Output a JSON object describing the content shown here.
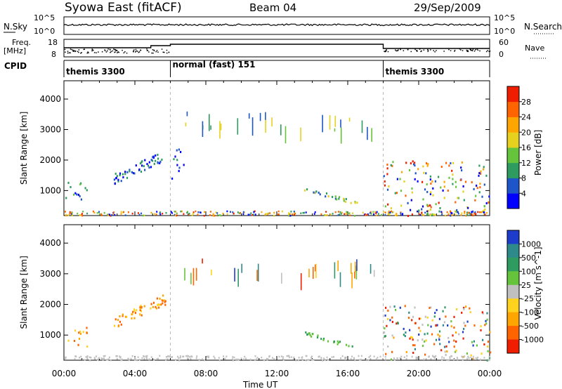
{
  "header": {
    "station": "Syowa East (fitACF)",
    "beam": "Beam 04",
    "date": "29/Sep/2009"
  },
  "noise_panel": {
    "left_label": "N.Sky",
    "left_ticks": [
      "10^5",
      "10^0"
    ],
    "right_label": "N.Search",
    "right_ticks": [
      "10^5",
      "10^0"
    ]
  },
  "freq_panel": {
    "left_label_1": "Freq.",
    "left_label_2": "[MHz]",
    "left_ticks": [
      "18",
      "8"
    ],
    "right_label": "Nave",
    "right_ticks": [
      "60",
      "0"
    ]
  },
  "cpid": {
    "label": "CPID",
    "segments": [
      {
        "name": "themis 3300",
        "start": 0,
        "end": 6
      },
      {
        "name": "normal (fast) 151",
        "start": 6,
        "end": 18
      },
      {
        "name": "themis 3300",
        "start": 18,
        "end": 24
      }
    ]
  },
  "chart_data": [
    {
      "type": "heatmap",
      "title": "Power",
      "xlabel": "Time UT",
      "ylabel": "Slant Range [km]",
      "xlim": [
        0,
        24
      ],
      "ylim": [
        180,
        4600
      ],
      "x_ticks": [
        "00:00",
        "04:00",
        "08:00",
        "12:00",
        "16:00",
        "20:00",
        "00:00"
      ],
      "y_ticks": [
        "1000",
        "2000",
        "3000",
        "4000"
      ],
      "colorbar": {
        "label": "Power [dB]",
        "ticks": [
          "4",
          "8",
          "12",
          "16",
          "20",
          "24",
          "28"
        ],
        "colors": [
          "#0000ff",
          "#1e55c8",
          "#2e9c5e",
          "#66c43c",
          "#e6d21e",
          "#ffa500",
          "#ff6400",
          "#f01e00"
        ]
      },
      "echo_regions": [
        {
          "t": [
            0.0,
            1.3
          ],
          "range": [
            600,
            1300
          ],
          "level": "low-mid"
        },
        {
          "t": [
            2.8,
            5.7
          ],
          "range": [
            1100,
            2400
          ],
          "level": "low"
        },
        {
          "t": [
            6.0,
            6.8
          ],
          "range": [
            1400,
            2400
          ],
          "level": "low"
        },
        {
          "t": [
            13.5,
            16.5
          ],
          "range": [
            500,
            1100
          ],
          "level": "mid"
        },
        {
          "t": [
            18.0,
            24.0
          ],
          "range": [
            200,
            2000
          ],
          "level": "mid-high"
        }
      ]
    },
    {
      "type": "heatmap",
      "title": "Velocity",
      "xlabel": "Time UT",
      "ylabel": "Slant Range [km]",
      "xlim": [
        0,
        24
      ],
      "ylim": [
        180,
        4600
      ],
      "x_ticks": [
        "00:00",
        "04:00",
        "08:00",
        "12:00",
        "16:00",
        "20:00",
        "00:00"
      ],
      "y_ticks": [
        "1000",
        "2000",
        "3000",
        "4000"
      ],
      "colorbar": {
        "label": "Velocity [m s^-1]",
        "ticks": [
          "1000",
          "500",
          "100",
          "25",
          "-25",
          "-100",
          "-500",
          "-1000"
        ],
        "colors": [
          "#1e3ccc",
          "#2e8a8a",
          "#2e9c5e",
          "#66c43c",
          "#c0c0c0",
          "#ffd21e",
          "#ffa500",
          "#ff6400",
          "#f01e00"
        ]
      },
      "echo_regions": [
        {
          "t": [
            0.0,
            1.3
          ],
          "range": [
            600,
            1300
          ],
          "level": "negative"
        },
        {
          "t": [
            2.8,
            5.7
          ],
          "range": [
            1100,
            2400
          ],
          "level": "negative"
        },
        {
          "t": [
            13.5,
            16.5
          ],
          "range": [
            500,
            1100
          ],
          "level": "positive-small"
        },
        {
          "t": [
            18.0,
            24.0
          ],
          "range": [
            200,
            2000
          ],
          "level": "mixed"
        }
      ]
    }
  ]
}
